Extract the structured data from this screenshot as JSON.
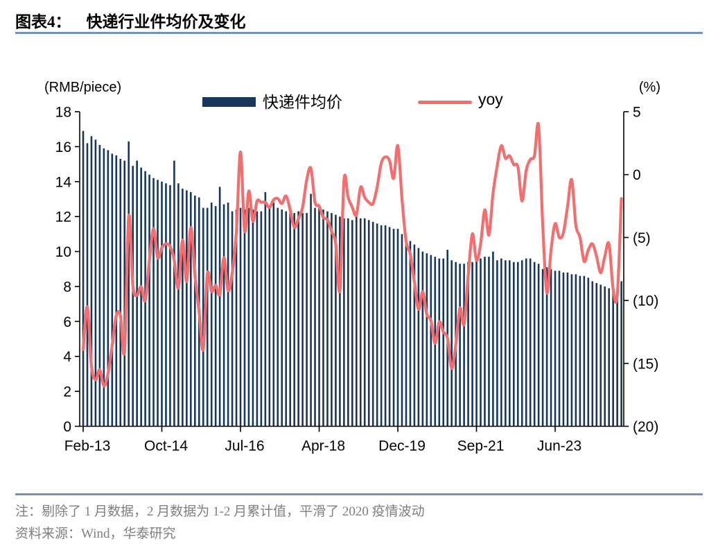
{
  "header": {
    "figure_label": "图表4：",
    "title": "快递行业件均价及变化"
  },
  "footer": {
    "note": "注：剔除了 1 月数据，2 月数据为 1-2 月累计值，平滑了 2020 疫情波动",
    "source": "资料来源：Wind，华泰研究"
  },
  "colors": {
    "bar": "#17375e",
    "line": "#f46e6e",
    "divider": "#7191c2",
    "axis": "#000000",
    "muted_text": "#7f7f7f"
  },
  "chart_data": {
    "type": "bar+line combo, dual axis",
    "title": "快递行业件均价及变化",
    "legend_position": "top-center",
    "grid": "off",
    "left_axis": {
      "unit": "(RMB/piece)",
      "min": 0,
      "max": 18,
      "tick_step": 2,
      "tick_values": [
        0,
        2,
        4,
        6,
        8,
        10,
        12,
        14,
        16,
        18
      ],
      "tick_labels": [
        "0",
        "2",
        "4",
        "6",
        "8",
        "10",
        "12",
        "14",
        "16",
        "18"
      ]
    },
    "right_axis": {
      "unit": "(%)",
      "min": -20,
      "max": 5,
      "tick_step": 5,
      "tick_values": [
        5,
        0,
        -5,
        -10,
        -15,
        -20
      ],
      "tick_labels": [
        "5",
        "0",
        "(5)",
        "(10)",
        "(15)",
        "(20)"
      ]
    },
    "x_axis": {
      "note": "monthly, January excluded; February shows Jan-Feb cumulative",
      "tick_labels": [
        "Feb-13",
        "Oct-14",
        "Jul-16",
        "Apr-18",
        "Dec-19",
        "Sep-21",
        "Jun-23"
      ],
      "tick_indices": [
        0,
        19,
        38,
        57,
        76,
        95,
        114
      ]
    },
    "x_months": [
      "Feb-13",
      "Mar-13",
      "Apr-13",
      "May-13",
      "Jun-13",
      "Jul-13",
      "Aug-13",
      "Sep-13",
      "Oct-13",
      "Nov-13",
      "Dec-13",
      "Feb-14",
      "Mar-14",
      "Apr-14",
      "May-14",
      "Jun-14",
      "Jul-14",
      "Aug-14",
      "Sep-14",
      "Oct-14",
      "Nov-14",
      "Dec-14",
      "Feb-15",
      "Mar-15",
      "Apr-15",
      "May-15",
      "Jun-15",
      "Jul-15",
      "Aug-15",
      "Sep-15",
      "Oct-15",
      "Nov-15",
      "Dec-15",
      "Feb-16",
      "Mar-16",
      "Apr-16",
      "May-16",
      "Jun-16",
      "Jul-16",
      "Aug-16",
      "Sep-16",
      "Oct-16",
      "Nov-16",
      "Dec-16",
      "Feb-17",
      "Mar-17",
      "Apr-17",
      "May-17",
      "Jun-17",
      "Jul-17",
      "Aug-17",
      "Sep-17",
      "Oct-17",
      "Nov-17",
      "Dec-17",
      "Feb-18",
      "Mar-18",
      "Apr-18",
      "May-18",
      "Jun-18",
      "Jul-18",
      "Aug-18",
      "Sep-18",
      "Oct-18",
      "Nov-18",
      "Dec-18",
      "Feb-19",
      "Mar-19",
      "Apr-19",
      "May-19",
      "Jun-19",
      "Jul-19",
      "Aug-19",
      "Sep-19",
      "Oct-19",
      "Nov-19",
      "Dec-19",
      "Feb-20",
      "Mar-20",
      "Apr-20",
      "May-20",
      "Jun-20",
      "Jul-20",
      "Aug-20",
      "Sep-20",
      "Oct-20",
      "Nov-20",
      "Dec-20",
      "Feb-21",
      "Mar-21",
      "Apr-21",
      "May-21",
      "Jun-21",
      "Jul-21",
      "Aug-21",
      "Sep-21",
      "Oct-21",
      "Nov-21",
      "Dec-21",
      "Feb-22",
      "Mar-22",
      "Apr-22",
      "May-22",
      "Jun-22",
      "Jul-22",
      "Aug-22",
      "Sep-22",
      "Oct-22",
      "Nov-22",
      "Dec-22",
      "Feb-23",
      "Mar-23",
      "Apr-23",
      "May-23",
      "Jun-23",
      "Jul-23",
      "Aug-23",
      "Sep-23",
      "Oct-23",
      "Nov-23",
      "Dec-23",
      "Feb-24",
      "Mar-24",
      "Apr-24",
      "May-24",
      "Jun-24",
      "Jul-24",
      "Aug-24",
      "Sep-24",
      "Oct-24",
      "Nov-24"
    ],
    "series": [
      {
        "name": "快递件均价",
        "type": "bar",
        "axis": "left",
        "unit": "RMB/piece",
        "values": [
          16.9,
          16.2,
          16.6,
          16.4,
          16.1,
          15.9,
          15.8,
          15.6,
          15.5,
          15.3,
          15.2,
          16.3,
          14.9,
          15.2,
          14.8,
          14.6,
          14.4,
          14.2,
          14.1,
          14.0,
          13.9,
          13.8,
          15.2,
          13.9,
          13.6,
          13.5,
          13.4,
          13.2,
          13.1,
          12.5,
          12.5,
          12.8,
          12.6,
          13.7,
          12.7,
          12.8,
          12.3,
          12.4,
          12.5,
          12.4,
          12.5,
          12.4,
          12.3,
          12.3,
          13.4,
          12.6,
          12.8,
          12.5,
          12.4,
          12.3,
          12.3,
          12.2,
          12.3,
          12.2,
          12.2,
          13.3,
          12.5,
          12.6,
          12.4,
          12.3,
          12.2,
          12.1,
          12.0,
          11.9,
          11.9,
          11.8,
          12.3,
          11.9,
          11.9,
          11.8,
          11.7,
          11.6,
          11.5,
          11.5,
          11.4,
          11.3,
          11.3,
          11.0,
          10.8,
          10.6,
          10.4,
          10.2,
          10.0,
          9.9,
          9.8,
          9.7,
          9.6,
          9.6,
          10.1,
          9.5,
          9.4,
          9.3,
          9.3,
          9.4,
          9.4,
          9.5,
          9.6,
          9.7,
          9.7,
          10.0,
          9.5,
          9.6,
          9.5,
          9.5,
          9.4,
          9.4,
          9.5,
          9.6,
          9.6,
          9.4,
          9.3,
          9.0,
          9.1,
          9.0,
          8.9,
          8.9,
          8.8,
          8.8,
          8.7,
          8.7,
          8.6,
          8.6,
          8.5,
          8.3,
          8.2,
          8.1,
          8.0,
          7.9,
          7.8,
          7.9,
          8.3
        ]
      },
      {
        "name": "yoy",
        "type": "line",
        "axis": "right",
        "unit": "%",
        "values": [
          -13.9,
          -10.5,
          -15.2,
          -16.3,
          -15.5,
          -16.8,
          -15.8,
          -13.6,
          -11.2,
          -11.2,
          -14.0,
          -3.3,
          -8.8,
          -9.6,
          -8.9,
          -10.0,
          -6.8,
          -4.3,
          -6.6,
          -5.8,
          -5.5,
          -5.7,
          -6.8,
          -9.0,
          -5.2,
          -8.5,
          -4.2,
          -8.0,
          -10.9,
          -13.9,
          -7.9,
          -9.3,
          -8.8,
          -9.5,
          -6.6,
          -9.2,
          -7.8,
          -4.6,
          1.8,
          -4.5,
          -1.3,
          -3.7,
          -2.1,
          -2.2,
          -2.2,
          -2.6,
          -2.0,
          -1.9,
          -2.3,
          -1.7,
          -2.8,
          -4.2,
          -3.5,
          -2.6,
          -0.4,
          0.5,
          -2.2,
          -2.5,
          -3.4,
          -3.6,
          -4.5,
          -5.5,
          -9.2,
          -0.4,
          -1.8,
          -2.6,
          -3.2,
          -1.0,
          -1.8,
          -2.2,
          -2.3,
          -1.0,
          0.9,
          1.4,
          1.1,
          -0.3,
          2.3,
          -1.9,
          -5.3,
          -6.3,
          -8.5,
          -10.7,
          -9.3,
          -11.1,
          -11.6,
          -13.4,
          -11.7,
          -12.5,
          -13.0,
          -15.4,
          -13.5,
          -10.6,
          -11.9,
          -8.0,
          -4.7,
          -6.8,
          -5.5,
          -2.8,
          -4.8,
          -1.5,
          0.7,
          2.3,
          1.3,
          1.5,
          0.8,
          0.6,
          -2.1,
          0.3,
          1.2,
          1.5,
          3.9,
          -4.0,
          -9.4,
          -6.0,
          -3.9,
          -5.0,
          -4.6,
          -2.5,
          -0.4,
          -4.0,
          -5.0,
          -6.9,
          -6.0,
          -5.5,
          -6.5,
          -7.8,
          -6.5,
          -5.5,
          -9.1,
          -9.6,
          -1.9
        ]
      }
    ]
  }
}
